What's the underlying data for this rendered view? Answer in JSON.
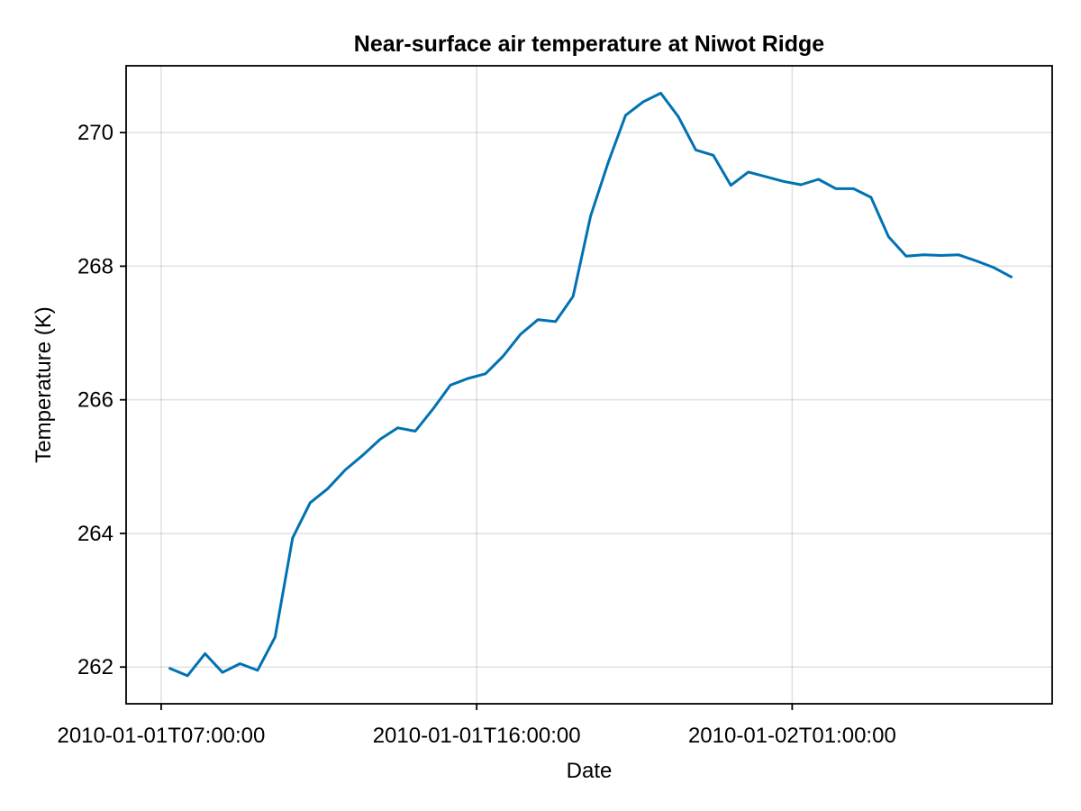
{
  "chart_data": {
    "type": "line",
    "title": "Near-surface air temperature at Niwot Ridge",
    "xlabel": "Date",
    "ylabel": "Temperature (K)",
    "x_tick_labels": [
      "2010-01-01T07:00:00",
      "2010-01-01T16:00:00",
      "2010-01-02T01:00:00"
    ],
    "y_tick_labels": [
      "262",
      "264",
      "266",
      "268",
      "270"
    ],
    "y_ticks": [
      262,
      264,
      266,
      268,
      270
    ],
    "ylim": [
      261.45,
      271.0
    ],
    "xlim": [
      "2010-01-01T06:00:00",
      "2010-01-02T08:25:00"
    ],
    "grid": true,
    "series": [
      {
        "color": "#0072B2",
        "x": [
          "2010-01-01T07:15:00",
          "2010-01-01T07:45:00",
          "2010-01-01T08:15:00",
          "2010-01-01T08:45:00",
          "2010-01-01T09:15:00",
          "2010-01-01T09:45:00",
          "2010-01-01T10:15:00",
          "2010-01-01T10:45:00",
          "2010-01-01T11:15:00",
          "2010-01-01T11:45:00",
          "2010-01-01T12:15:00",
          "2010-01-01T12:45:00",
          "2010-01-01T13:15:00",
          "2010-01-01T13:45:00",
          "2010-01-01T14:15:00",
          "2010-01-01T14:45:00",
          "2010-01-01T15:15:00",
          "2010-01-01T15:45:00",
          "2010-01-01T16:15:00",
          "2010-01-01T16:45:00",
          "2010-01-01T17:15:00",
          "2010-01-01T17:45:00",
          "2010-01-01T18:15:00",
          "2010-01-01T18:45:00",
          "2010-01-01T19:15:00",
          "2010-01-01T19:45:00",
          "2010-01-01T20:15:00",
          "2010-01-01T20:45:00",
          "2010-01-01T21:15:00",
          "2010-01-01T21:45:00",
          "2010-01-01T22:15:00",
          "2010-01-01T22:45:00",
          "2010-01-01T23:15:00",
          "2010-01-01T23:45:00",
          "2010-01-02T00:15:00",
          "2010-01-02T00:45:00",
          "2010-01-02T01:15:00",
          "2010-01-02T01:45:00",
          "2010-01-02T02:15:00",
          "2010-01-02T02:45:00",
          "2010-01-02T03:15:00",
          "2010-01-02T03:45:00",
          "2010-01-02T04:15:00",
          "2010-01-02T04:45:00",
          "2010-01-02T05:15:00",
          "2010-01-02T05:45:00",
          "2010-01-02T06:15:00",
          "2010-01-02T06:45:00",
          "2010-01-02T07:15:00",
          "2010-01-02T07:45:00"
        ],
        "y": [
          261.98,
          261.87,
          262.2,
          261.92,
          262.05,
          261.95,
          262.45,
          263.93,
          264.46,
          264.67,
          264.95,
          265.17,
          265.41,
          265.58,
          265.53,
          265.86,
          266.22,
          266.32,
          266.39,
          266.65,
          266.98,
          267.2,
          267.17,
          267.55,
          268.75,
          269.55,
          270.26,
          270.46,
          270.59,
          270.24,
          269.74,
          269.66,
          269.21,
          269.41,
          269.34,
          269.27,
          269.22,
          269.3,
          269.16,
          269.16,
          269.03,
          268.44,
          268.15,
          268.17,
          268.16,
          268.17,
          268.08,
          267.98,
          267.84,
          null
        ]
      }
    ]
  }
}
